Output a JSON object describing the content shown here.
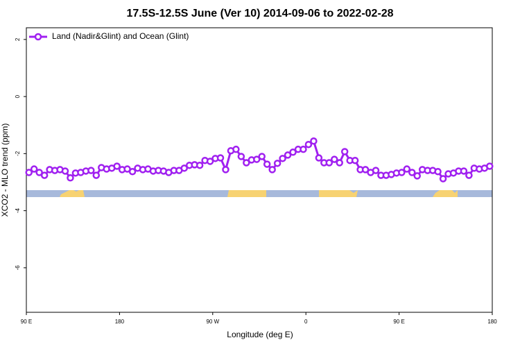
{
  "chart_data": {
    "type": "line",
    "title": "17.5S-12.5S June (Ver 10)   2014-09-06 to 2022-02-28",
    "x_label": "Longitude (deg E)",
    "y_label": "XCO2 - MLO trend (ppm)",
    "x": [
      92.5,
      97.5,
      102.5,
      107.5,
      112.5,
      117.5,
      122.5,
      127.5,
      132.5,
      137.5,
      142.5,
      147.5,
      152.5,
      157.5,
      162.5,
      167.5,
      172.5,
      177.5,
      182.5,
      187.5,
      192.5,
      197.5,
      202.5,
      207.5,
      212.5,
      217.5,
      222.5,
      227.5,
      232.5,
      237.5,
      242.5,
      247.5,
      252.5,
      257.5,
      262.5,
      267.5,
      272.5,
      277.5,
      282.5,
      287.5,
      292.5,
      297.5,
      302.5,
      307.5,
      312.5,
      317.5,
      322.5,
      327.5,
      332.5,
      337.5,
      342.5,
      347.5,
      352.5,
      357.5,
      362.5,
      367.5,
      372.5,
      377.5,
      382.5,
      387.5,
      392.5,
      397.5,
      402.5,
      407.5,
      412.5,
      417.5,
      422.5,
      427.5,
      432.5,
      437.5,
      442.5,
      447.5,
      452.5,
      457.5,
      462.5,
      467.5,
      472.5,
      477.5,
      482.5,
      487.5,
      492.5,
      497.5,
      502.5,
      507.5,
      512.5,
      517.5,
      522.5,
      527.5,
      532.5,
      537.5
    ],
    "series": [
      {
        "name": "Land (Nadir&Glint) and Ocean (Glint)",
        "color": "#a020f0",
        "values": [
          -2.66,
          -2.54,
          -2.66,
          -2.76,
          -2.56,
          -2.59,
          -2.56,
          -2.61,
          -2.85,
          -2.68,
          -2.66,
          -2.61,
          -2.59,
          -2.76,
          -2.49,
          -2.54,
          -2.51,
          -2.44,
          -2.56,
          -2.54,
          -2.63,
          -2.51,
          -2.56,
          -2.54,
          -2.61,
          -2.59,
          -2.61,
          -2.66,
          -2.59,
          -2.59,
          -2.51,
          -2.41,
          -2.39,
          -2.41,
          -2.24,
          -2.27,
          -2.17,
          -2.15,
          -2.56,
          -1.9,
          -1.85,
          -2.1,
          -2.32,
          -2.22,
          -2.2,
          -2.1,
          -2.37,
          -2.56,
          -2.34,
          -2.17,
          -2.05,
          -1.95,
          -1.85,
          -1.85,
          -1.68,
          -1.56,
          -2.15,
          -2.32,
          -2.32,
          -2.2,
          -2.32,
          -1.93,
          -2.24,
          -2.24,
          -2.56,
          -2.56,
          -2.66,
          -2.59,
          -2.76,
          -2.76,
          -2.73,
          -2.68,
          -2.66,
          -2.54,
          -2.66,
          -2.78,
          -2.56,
          -2.59,
          -2.59,
          -2.63,
          -2.88,
          -2.71,
          -2.68,
          -2.61,
          -2.61,
          -2.76,
          -2.51,
          -2.54,
          -2.51,
          -2.44
        ]
      }
    ],
    "xlim": [
      90,
      540
    ],
    "xticks": [
      {
        "value": 90,
        "label": "90 E"
      },
      180,
      {
        "value": 270,
        "label": "90 W"
      },
      {
        "value": 360,
        "label": "0"
      },
      {
        "value": 450,
        "label": "90 E"
      },
      {
        "value": 540,
        "label": "180"
      }
    ],
    "ylim": [
      -7.56,
      2.41
    ],
    "yticks": [
      -6,
      -4,
      -2,
      0,
      2
    ],
    "legend": "top-left"
  }
}
